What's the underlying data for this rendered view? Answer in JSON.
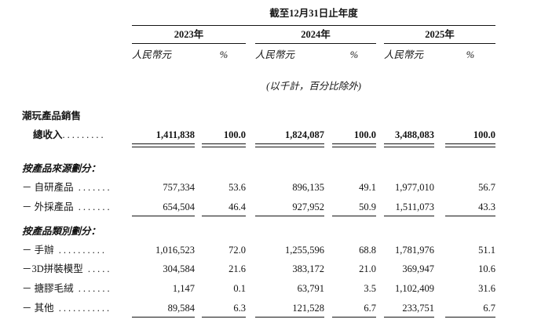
{
  "header": {
    "period_title": "截至12月31日止年度",
    "years": [
      "2023年",
      "2024年",
      "2025年"
    ],
    "currency_label": "人民幣元",
    "percent_label": "%",
    "unit_note": "(以千計，百分比除外)"
  },
  "table": {
    "group_title": "潮玩產品銷售",
    "rows": [
      {
        "label": "總收入",
        "dots": ".........",
        "values": [
          "1,411,838",
          "100.0",
          "1,824,087",
          "100.0",
          "3,488,083",
          "100.0"
        ]
      },
      {
        "label": "按產品來源劃分："
      },
      {
        "label": "－ 自研產品",
        "dots": " .......",
        "values": [
          "757,334",
          "53.6",
          "896,135",
          "49.1",
          "1,977,010",
          "56.7"
        ]
      },
      {
        "label": "－ 外採產品",
        "dots": " .......",
        "values": [
          "654,504",
          "46.4",
          "927,952",
          "50.9",
          "1,511,073",
          "43.3"
        ]
      },
      {
        "label": "按產品類別劃分："
      },
      {
        "label": "－ 手辦",
        "dots": " ..........",
        "values": [
          "1,016,523",
          "72.0",
          "1,255,596",
          "68.8",
          "1,781,976",
          "51.1"
        ]
      },
      {
        "label": "－3D拼裝模型",
        "dots": " .....",
        "values": [
          "304,584",
          "21.6",
          "383,172",
          "21.0",
          "369,947",
          "10.6"
        ]
      },
      {
        "label": "－ 搪膠毛絨",
        "dots": " .......",
        "values": [
          "1,147",
          "0.1",
          "63,791",
          "3.5",
          "1,102,409",
          "31.6"
        ]
      },
      {
        "label": "－ 其他",
        "dots": " ...........",
        "values": [
          "89,584",
          "6.3",
          "121,528",
          "6.7",
          "233,751",
          "6.7"
        ]
      }
    ]
  }
}
